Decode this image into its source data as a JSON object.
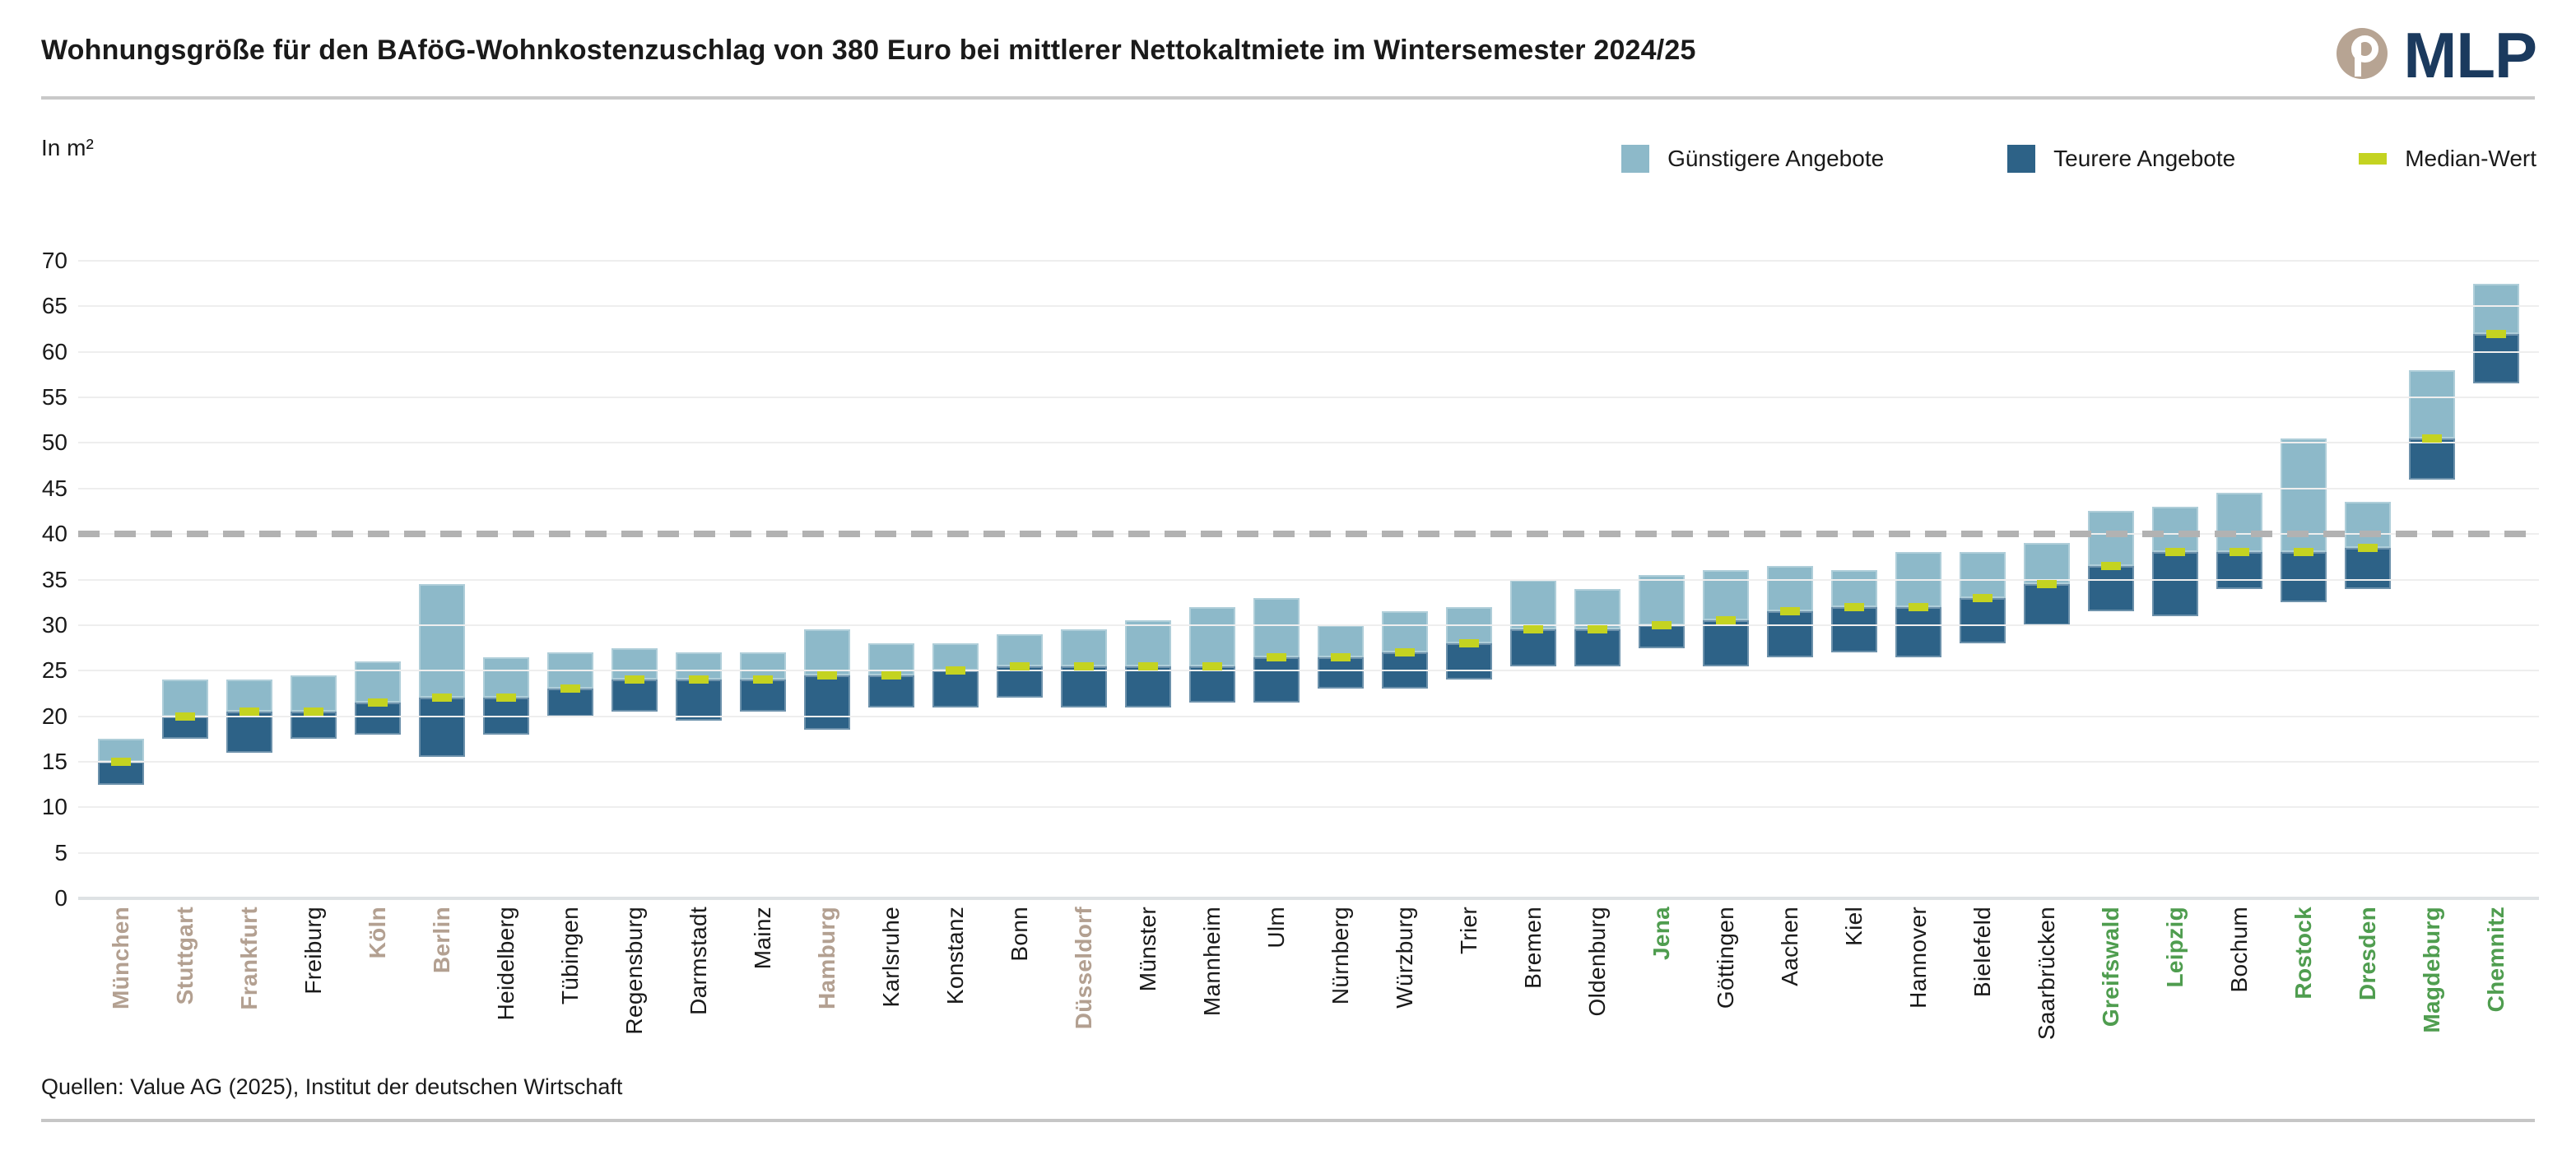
{
  "header": {
    "title": "Wohnungsgröße für den BAföG-Wohnkostenzuschlag von 380 Euro bei mittlerer Nettokaltmiete im Wintersemester 2024/25",
    "logo_text": "MLP"
  },
  "axis": {
    "unit_label": "In m²"
  },
  "legend": {
    "items": [
      {
        "label": "Günstigere Angebote",
        "type": "light",
        "color": "#8db9c9"
      },
      {
        "label": "Teurere Angebote",
        "type": "dark",
        "color": "#2d6287"
      },
      {
        "label": "Median-Wert",
        "type": "median",
        "color": "#c4d321"
      }
    ]
  },
  "footer": {
    "source": "Quellen: Value AG (2025), Institut der deutschen Wirtschaft"
  },
  "chart_data": {
    "type": "bar",
    "subtype": "floating-range-bars-with-median-marker",
    "title": "Wohnungsgröße für den BAföG-Wohnkostenzuschlag von 380 Euro bei mittlerer Nettokaltmiete im Wintersemester 2024/25",
    "ylabel": "In m²",
    "ylim": [
      0,
      70
    ],
    "y_tick_step": 5,
    "y_ticks": [
      0,
      5,
      10,
      15,
      20,
      25,
      30,
      35,
      40,
      45,
      50,
      55,
      60,
      65,
      70
    ],
    "reference_line": 40,
    "grid": true,
    "legend_position": "top-right",
    "series_meaning": {
      "min": "untere Grenze (Teurere Angebote, dunkelblau)",
      "median": "Median-Wert (gelbgrüne Markierung, Grenze hell/dunkel)",
      "max": "obere Grenze (Günstigere Angebote, hellblau)"
    },
    "label_colors": {
      "tan": "#b3a091",
      "green": "#4f9d4f",
      "black": "#1a1a1a"
    },
    "cities": [
      {
        "name": "München",
        "min": 12.5,
        "median": 15,
        "max": 17.5,
        "group": "tan"
      },
      {
        "name": "Stuttgart",
        "min": 17.5,
        "median": 20,
        "max": 24,
        "group": "tan"
      },
      {
        "name": "Frankfurt",
        "min": 16,
        "median": 20.5,
        "max": 24,
        "group": "tan"
      },
      {
        "name": "Freiburg",
        "min": 17.5,
        "median": 20.5,
        "max": 24.5,
        "group": "black"
      },
      {
        "name": "Köln",
        "min": 18,
        "median": 21.5,
        "max": 26,
        "group": "tan"
      },
      {
        "name": "Berlin",
        "min": 15.5,
        "median": 22,
        "max": 34.5,
        "group": "tan"
      },
      {
        "name": "Heidelberg",
        "min": 18,
        "median": 22,
        "max": 26.5,
        "group": "black"
      },
      {
        "name": "Tübingen",
        "min": 20,
        "median": 23,
        "max": 27,
        "group": "black"
      },
      {
        "name": "Regensburg",
        "min": 20.5,
        "median": 24,
        "max": 27.5,
        "group": "black"
      },
      {
        "name": "Darmstadt",
        "min": 19.5,
        "median": 24,
        "max": 27,
        "group": "black"
      },
      {
        "name": "Mainz",
        "min": 20.5,
        "median": 24,
        "max": 27,
        "group": "black"
      },
      {
        "name": "Hamburg",
        "min": 18.5,
        "median": 24.5,
        "max": 29.5,
        "group": "tan"
      },
      {
        "name": "Karlsruhe",
        "min": 21,
        "median": 24.5,
        "max": 28,
        "group": "black"
      },
      {
        "name": "Konstanz",
        "min": 21,
        "median": 25,
        "max": 28,
        "group": "black"
      },
      {
        "name": "Bonn",
        "min": 22,
        "median": 25.5,
        "max": 29,
        "group": "black"
      },
      {
        "name": "Düsseldorf",
        "min": 21,
        "median": 25.5,
        "max": 29.5,
        "group": "tan"
      },
      {
        "name": "Münster",
        "min": 21,
        "median": 25.5,
        "max": 30.5,
        "group": "black"
      },
      {
        "name": "Mannheim",
        "min": 21.5,
        "median": 25.5,
        "max": 32,
        "group": "black"
      },
      {
        "name": "Ulm",
        "min": 21.5,
        "median": 26.5,
        "max": 33,
        "group": "black"
      },
      {
        "name": "Nürnberg",
        "min": 23,
        "median": 26.5,
        "max": 30,
        "group": "black"
      },
      {
        "name": "Würzburg",
        "min": 23,
        "median": 27,
        "max": 31.5,
        "group": "black"
      },
      {
        "name": "Trier",
        "min": 24,
        "median": 28,
        "max": 32,
        "group": "black"
      },
      {
        "name": "Bremen",
        "min": 25.5,
        "median": 29.5,
        "max": 35,
        "group": "black"
      },
      {
        "name": "Oldenburg",
        "min": 25.5,
        "median": 29.5,
        "max": 34,
        "group": "black"
      },
      {
        "name": "Jena",
        "min": 27.5,
        "median": 30,
        "max": 35.5,
        "group": "green"
      },
      {
        "name": "Göttingen",
        "min": 25.5,
        "median": 30.5,
        "max": 36,
        "group": "black"
      },
      {
        "name": "Aachen",
        "min": 26.5,
        "median": 31.5,
        "max": 36.5,
        "group": "black"
      },
      {
        "name": "Kiel",
        "min": 27,
        "median": 32,
        "max": 36,
        "group": "black"
      },
      {
        "name": "Hannover",
        "min": 26.5,
        "median": 32,
        "max": 38,
        "group": "black"
      },
      {
        "name": "Bielefeld",
        "min": 28,
        "median": 33,
        "max": 38,
        "group": "black"
      },
      {
        "name": "Saarbrücken",
        "min": 30,
        "median": 34.5,
        "max": 39,
        "group": "black"
      },
      {
        "name": "Greifswald",
        "min": 31.5,
        "median": 36.5,
        "max": 42.5,
        "group": "green"
      },
      {
        "name": "Leipzig",
        "min": 31,
        "median": 38,
        "max": 43,
        "group": "green"
      },
      {
        "name": "Bochum",
        "min": 34,
        "median": 38,
        "max": 44.5,
        "group": "black"
      },
      {
        "name": "Rostock",
        "min": 32.5,
        "median": 38,
        "max": 50.5,
        "group": "green"
      },
      {
        "name": "Dresden",
        "min": 34,
        "median": 38.5,
        "max": 43.5,
        "group": "green"
      },
      {
        "name": "Magdeburg",
        "min": 46,
        "median": 50.5,
        "max": 58,
        "group": "green"
      },
      {
        "name": "Chemnitz",
        "min": 56.5,
        "median": 62,
        "max": 67.5,
        "group": "green"
      }
    ],
    "colors": {
      "guenstigere_angebote": "#8db9c9",
      "teurere_angebote": "#2d6287",
      "median_wert": "#c4d321",
      "reference_line": "#b2b2b2"
    }
  }
}
